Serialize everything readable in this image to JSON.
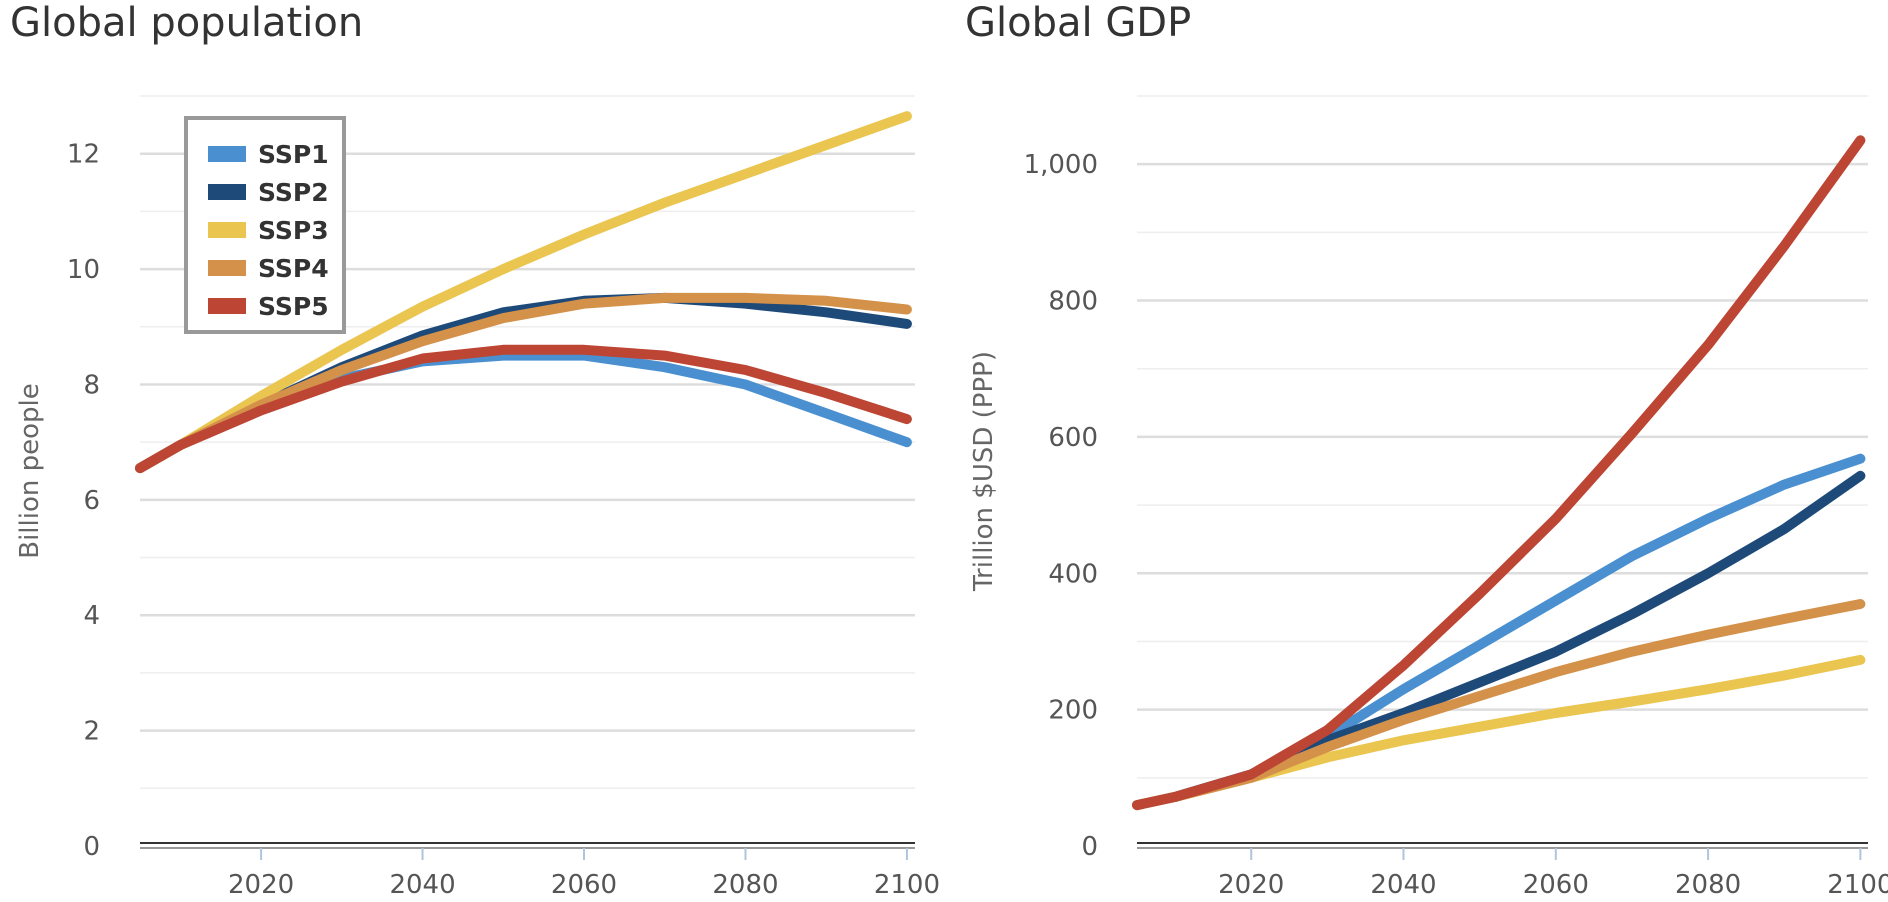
{
  "chart_data": [
    {
      "type": "line",
      "title": "Global population",
      "xlabel": "",
      "ylabel": "Billion people",
      "xlim": [
        2005,
        2101
      ],
      "ylim": [
        0,
        13
      ],
      "xticks": [
        "2020",
        "2040",
        "2060",
        "2080",
        "2100"
      ],
      "yticks": [
        "0",
        "2",
        "4",
        "6",
        "8",
        "10",
        "12"
      ],
      "grid": true,
      "legend": "top-left",
      "x": [
        2005,
        2010,
        2020,
        2030,
        2040,
        2050,
        2060,
        2070,
        2080,
        2090,
        2100
      ],
      "series": [
        {
          "name": "SSP1",
          "color": "#4a90d0",
          "values": [
            6.55,
            6.95,
            7.6,
            8.1,
            8.4,
            8.5,
            8.5,
            8.3,
            8.0,
            7.5,
            7.0
          ]
        },
        {
          "name": "SSP2",
          "color": "#1e4a7a",
          "values": [
            6.55,
            6.95,
            7.65,
            8.3,
            8.85,
            9.25,
            9.45,
            9.5,
            9.4,
            9.25,
            9.05
          ]
        },
        {
          "name": "SSP3",
          "color": "#eac54f",
          "values": [
            6.55,
            6.95,
            7.8,
            8.6,
            9.35,
            10.0,
            10.6,
            11.15,
            11.65,
            12.15,
            12.65
          ]
        },
        {
          "name": "SSP4",
          "color": "#d4914a",
          "values": [
            6.55,
            6.95,
            7.65,
            8.25,
            8.75,
            9.15,
            9.4,
            9.5,
            9.5,
            9.45,
            9.3
          ]
        },
        {
          "name": "SSP5",
          "color": "#bd4534",
          "values": [
            6.55,
            6.95,
            7.55,
            8.05,
            8.45,
            8.6,
            8.6,
            8.5,
            8.25,
            7.85,
            7.4
          ]
        }
      ]
    },
    {
      "type": "line",
      "title": "Global GDP",
      "xlabel": "",
      "ylabel": "Trillion $USD (PPP)",
      "xlim": [
        2005,
        2101
      ],
      "ylim": [
        0,
        1100
      ],
      "xticks": [
        "2020",
        "2040",
        "2060",
        "2080",
        "2100"
      ],
      "yticks": [
        "0",
        "200",
        "400",
        "600",
        "800",
        "1,000"
      ],
      "grid": true,
      "x": [
        2005,
        2010,
        2020,
        2030,
        2040,
        2050,
        2060,
        2070,
        2080,
        2090,
        2100
      ],
      "series": [
        {
          "name": "SSP1",
          "color": "#4a90d0",
          "values": [
            60,
            72,
            105,
            160,
            230,
            295,
            360,
            425,
            480,
            530,
            568
          ]
        },
        {
          "name": "SSP2",
          "color": "#1e4a7a",
          "values": [
            60,
            72,
            105,
            155,
            195,
            240,
            285,
            340,
            400,
            465,
            543
          ]
        },
        {
          "name": "SSP3",
          "color": "#eac54f",
          "values": [
            60,
            72,
            100,
            130,
            155,
            175,
            195,
            212,
            230,
            250,
            273
          ]
        },
        {
          "name": "SSP4",
          "color": "#d4914a",
          "values": [
            60,
            72,
            100,
            145,
            185,
            220,
            255,
            285,
            310,
            333,
            355
          ]
        },
        {
          "name": "SSP5",
          "color": "#bd4534",
          "values": [
            60,
            72,
            105,
            170,
            265,
            370,
            480,
            605,
            735,
            880,
            1035
          ]
        }
      ]
    }
  ]
}
